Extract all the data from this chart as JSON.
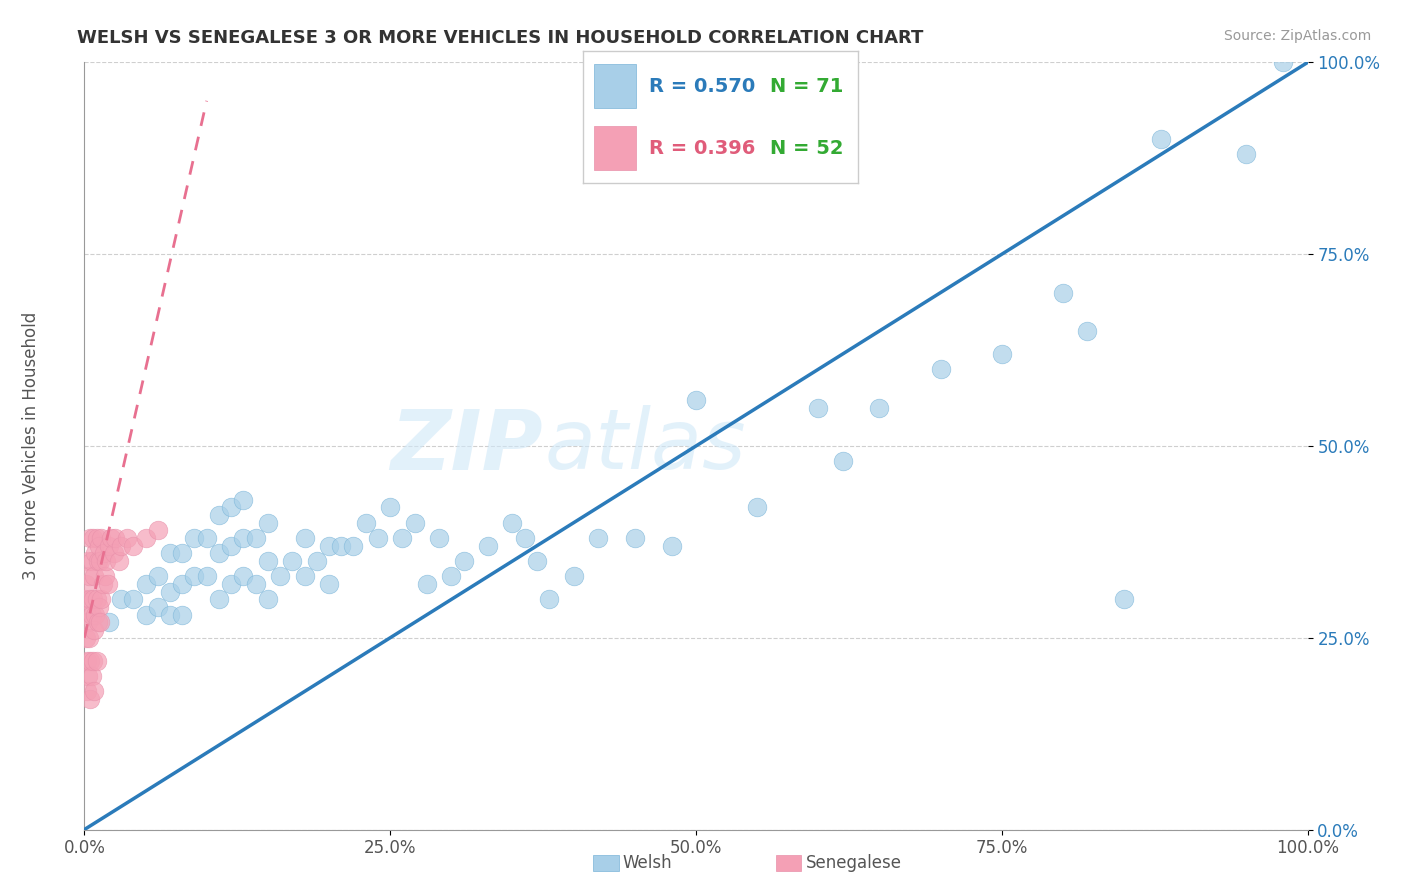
{
  "title": "WELSH VS SENEGALESE 3 OR MORE VEHICLES IN HOUSEHOLD CORRELATION CHART",
  "source": "Source: ZipAtlas.com",
  "ylabel": "3 or more Vehicles in Household",
  "welsh_R": 0.57,
  "welsh_N": 71,
  "senegalese_R": 0.396,
  "senegalese_N": 52,
  "xlim": [
    0,
    1
  ],
  "ylim": [
    0,
    1
  ],
  "xticks": [
    0.0,
    0.25,
    0.5,
    0.75,
    1.0
  ],
  "yticks": [
    0.0,
    0.25,
    0.5,
    0.75,
    1.0
  ],
  "xticklabels": [
    "0.0%",
    "25.0%",
    "50.0%",
    "75.0%",
    "100.0%"
  ],
  "yticklabels": [
    "0.0%",
    "25.0%",
    "50.0%",
    "75.0%",
    "100.0%"
  ],
  "welsh_color": "#a8cfe8",
  "senegalese_color": "#f4a0b5",
  "welsh_line_color": "#2b7bba",
  "senegalese_line_color": "#e87090",
  "legend_R_color_welsh": "#2b7bba",
  "legend_R_color_senegalese": "#e05c7a",
  "legend_N_color": "#33aa33",
  "watermark_color": "#d0e8f8",
  "watermark_alpha": 0.6,
  "welsh_x": [
    0.02,
    0.03,
    0.04,
    0.05,
    0.05,
    0.06,
    0.06,
    0.07,
    0.07,
    0.07,
    0.08,
    0.08,
    0.08,
    0.09,
    0.09,
    0.1,
    0.1,
    0.11,
    0.11,
    0.11,
    0.12,
    0.12,
    0.12,
    0.13,
    0.13,
    0.13,
    0.14,
    0.14,
    0.15,
    0.15,
    0.15,
    0.16,
    0.17,
    0.18,
    0.18,
    0.19,
    0.2,
    0.2,
    0.21,
    0.22,
    0.23,
    0.24,
    0.25,
    0.26,
    0.27,
    0.28,
    0.29,
    0.3,
    0.31,
    0.33,
    0.35,
    0.36,
    0.37,
    0.38,
    0.4,
    0.42,
    0.45,
    0.48,
    0.5,
    0.55,
    0.6,
    0.62,
    0.65,
    0.7,
    0.75,
    0.8,
    0.82,
    0.85,
    0.88,
    0.95,
    0.98
  ],
  "welsh_y": [
    0.27,
    0.3,
    0.3,
    0.32,
    0.28,
    0.33,
    0.29,
    0.36,
    0.31,
    0.28,
    0.36,
    0.32,
    0.28,
    0.38,
    0.33,
    0.38,
    0.33,
    0.41,
    0.36,
    0.3,
    0.42,
    0.37,
    0.32,
    0.43,
    0.38,
    0.33,
    0.38,
    0.32,
    0.4,
    0.35,
    0.3,
    0.33,
    0.35,
    0.38,
    0.33,
    0.35,
    0.37,
    0.32,
    0.37,
    0.37,
    0.4,
    0.38,
    0.42,
    0.38,
    0.4,
    0.32,
    0.38,
    0.33,
    0.35,
    0.37,
    0.4,
    0.38,
    0.35,
    0.3,
    0.33,
    0.38,
    0.38,
    0.37,
    0.56,
    0.42,
    0.55,
    0.48,
    0.55,
    0.6,
    0.62,
    0.7,
    0.65,
    0.3,
    0.9,
    0.88,
    1.0
  ],
  "senegalese_x": [
    0.0,
    0.001,
    0.001,
    0.002,
    0.002,
    0.002,
    0.003,
    0.003,
    0.003,
    0.004,
    0.004,
    0.005,
    0.005,
    0.005,
    0.005,
    0.006,
    0.006,
    0.006,
    0.007,
    0.007,
    0.007,
    0.008,
    0.008,
    0.008,
    0.009,
    0.009,
    0.01,
    0.01,
    0.01,
    0.011,
    0.011,
    0.012,
    0.012,
    0.013,
    0.013,
    0.014,
    0.014,
    0.015,
    0.016,
    0.017,
    0.018,
    0.019,
    0.02,
    0.022,
    0.024,
    0.025,
    0.028,
    0.03,
    0.035,
    0.04,
    0.05,
    0.06
  ],
  "senegalese_y": [
    0.3,
    0.32,
    0.25,
    0.28,
    0.22,
    0.18,
    0.35,
    0.27,
    0.2,
    0.33,
    0.25,
    0.38,
    0.3,
    0.22,
    0.17,
    0.35,
    0.28,
    0.2,
    0.38,
    0.3,
    0.22,
    0.33,
    0.26,
    0.18,
    0.36,
    0.28,
    0.38,
    0.3,
    0.22,
    0.35,
    0.27,
    0.37,
    0.29,
    0.35,
    0.27,
    0.38,
    0.3,
    0.32,
    0.36,
    0.33,
    0.35,
    0.32,
    0.37,
    0.38,
    0.36,
    0.38,
    0.35,
    0.37,
    0.38,
    0.37,
    0.38,
    0.39
  ],
  "welsh_line_x0": 0.0,
  "welsh_line_y0": 0.0,
  "welsh_line_x1": 1.0,
  "welsh_line_y1": 1.0,
  "sen_line_x0": 0.0,
  "sen_line_y0": 0.25,
  "sen_line_x1": 0.1,
  "sen_line_y1": 0.95
}
